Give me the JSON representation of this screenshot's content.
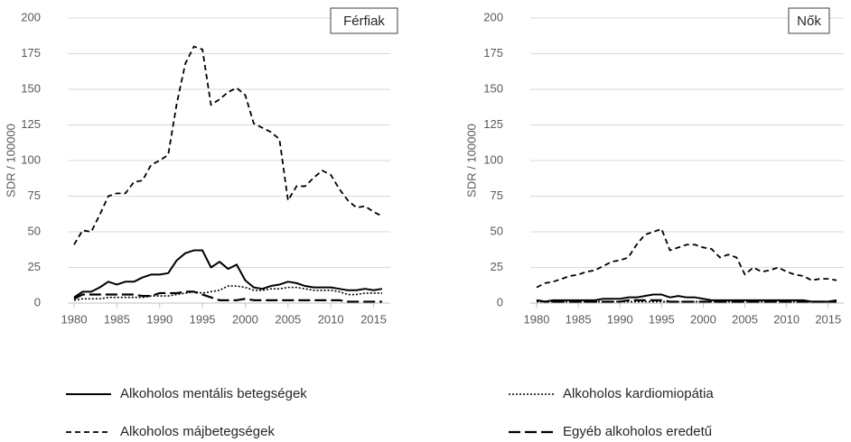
{
  "chart_data": [
    {
      "type": "line",
      "title": "Férfiak",
      "ylabel": "SDR / 100000",
      "x": [
        1980,
        1981,
        1982,
        1983,
        1984,
        1985,
        1986,
        1987,
        1988,
        1989,
        1990,
        1991,
        1992,
        1993,
        1994,
        1995,
        1996,
        1997,
        1998,
        1999,
        2000,
        2001,
        2002,
        2003,
        2004,
        2005,
        2006,
        2007,
        2008,
        2009,
        2010,
        2011,
        2012,
        2013,
        2014,
        2015,
        2016
      ],
      "xlim": [
        1980,
        2016
      ],
      "xticks": [
        1980,
        1985,
        1990,
        1995,
        2000,
        2005,
        2010,
        2015
      ],
      "ylim": [
        0,
        200
      ],
      "yticks": [
        0,
        25,
        50,
        75,
        100,
        125,
        150,
        175,
        200
      ],
      "grid": true,
      "series": [
        {
          "name": "Alkoholos mentális betegségek",
          "color": "#000000",
          "style": "solid",
          "values": [
            4,
            8,
            8,
            11,
            15,
            13,
            15,
            15,
            18,
            20,
            20,
            21,
            30,
            35,
            37,
            37,
            25,
            29,
            24,
            27,
            16,
            11,
            10,
            12,
            13,
            15,
            14,
            12,
            11,
            11,
            11,
            10,
            9,
            9,
            10,
            9,
            10
          ]
        },
        {
          "name": "Alkoholos kardiomiopátia",
          "color": "#000000",
          "style": "dotted",
          "values": [
            2,
            3,
            3,
            3,
            4,
            4,
            4,
            4,
            4,
            5,
            5,
            5,
            6,
            7,
            8,
            7,
            8,
            9,
            12,
            12,
            11,
            9,
            9,
            10,
            10,
            11,
            11,
            10,
            9,
            9,
            9,
            8,
            6,
            6,
            7,
            7,
            7
          ]
        },
        {
          "name": "Alkoholos májbetegségek",
          "color": "#000000",
          "style": "dashed",
          "values": [
            41,
            51,
            50,
            62,
            75,
            77,
            77,
            85,
            86,
            97,
            100,
            104,
            140,
            168,
            180,
            178,
            139,
            143,
            148,
            151,
            146,
            126,
            123,
            120,
            115,
            72,
            82,
            82,
            88,
            93,
            90,
            80,
            72,
            67,
            68,
            64,
            61
          ]
        },
        {
          "name": "Egyéb alkoholos eredetű",
          "color": "#000000",
          "style": "longdash",
          "values": [
            3,
            6,
            6,
            6,
            6,
            6,
            6,
            6,
            5,
            5,
            7,
            7,
            7,
            8,
            8,
            6,
            4,
            2,
            2,
            2,
            3,
            2,
            2,
            2,
            2,
            2,
            2,
            2,
            2,
            2,
            2,
            2,
            1,
            1,
            1,
            1,
            1
          ]
        }
      ]
    },
    {
      "type": "line",
      "title": "Nők",
      "ylabel": "SDR / 100000",
      "x": [
        1980,
        1981,
        1982,
        1983,
        1984,
        1985,
        1986,
        1987,
        1988,
        1989,
        1990,
        1991,
        1992,
        1993,
        1994,
        1995,
        1996,
        1997,
        1998,
        1999,
        2000,
        2001,
        2002,
        2003,
        2004,
        2005,
        2006,
        2007,
        2008,
        2009,
        2010,
        2011,
        2012,
        2013,
        2014,
        2015,
        2016
      ],
      "xlim": [
        1980,
        2016
      ],
      "xticks": [
        1980,
        1985,
        1990,
        1995,
        2000,
        2005,
        2010,
        2015
      ],
      "ylim": [
        0,
        200
      ],
      "yticks": [
        0,
        25,
        50,
        75,
        100,
        125,
        150,
        175,
        200
      ],
      "grid": true,
      "series": [
        {
          "color": "#000000",
          "style": "solid",
          "values": [
            2,
            1,
            2,
            2,
            2,
            2,
            2,
            2,
            3,
            3,
            3,
            4,
            4,
            5,
            6,
            6,
            4,
            5,
            4,
            4,
            3,
            2,
            2,
            2,
            2,
            2,
            2,
            2,
            2,
            2,
            2,
            2,
            2,
            1,
            1,
            1,
            2
          ]
        },
        {
          "color": "#000000",
          "style": "dotted",
          "values": [
            1,
            1,
            1,
            1,
            1,
            1,
            1,
            1,
            1,
            1,
            1,
            1,
            1,
            1,
            1,
            1,
            1,
            1,
            1,
            1,
            1,
            1,
            1,
            1,
            1,
            1,
            1,
            1,
            1,
            1,
            1,
            1,
            1,
            1,
            1,
            1,
            1
          ]
        },
        {
          "color": "#000000",
          "style": "dashed",
          "values": [
            11,
            14,
            15,
            17,
            19,
            20,
            22,
            23,
            26,
            29,
            30,
            32,
            41,
            48,
            50,
            52,
            37,
            39,
            41,
            41,
            39,
            38,
            32,
            34,
            32,
            20,
            25,
            22,
            23,
            25,
            22,
            20,
            19,
            16,
            17,
            17,
            16
          ]
        },
        {
          "color": "#000000",
          "style": "longdash",
          "values": [
            2,
            1,
            1,
            1,
            1,
            1,
            1,
            1,
            1,
            1,
            1,
            2,
            2,
            2,
            2,
            2,
            1,
            1,
            1,
            1,
            1,
            1,
            1,
            1,
            1,
            1,
            1,
            1,
            1,
            1,
            1,
            1,
            1,
            1,
            1,
            1,
            1
          ]
        }
      ]
    }
  ]
}
